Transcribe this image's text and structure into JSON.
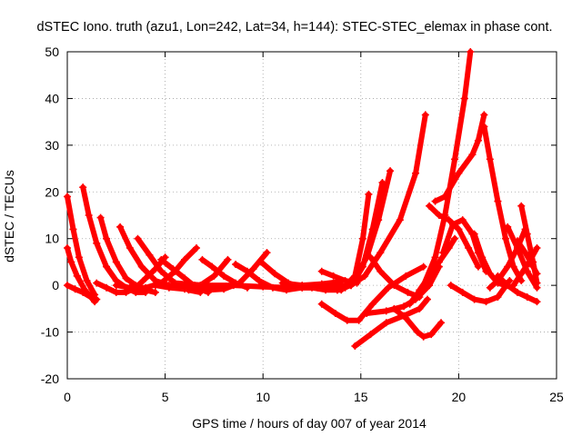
{
  "chart_data": {
    "type": "scatter",
    "title": "dSTEC Iono. truth (azu1, Lon=242, Lat=34, h=144): STEC-STEC_elemax in phase cont.",
    "xlabel": "GPS time / hours of day 007 of year 2014",
    "ylabel": "dSTEC  / TECUs",
    "xlim": [
      0,
      25
    ],
    "ylim": [
      -20,
      50
    ],
    "xticks": [
      0,
      5,
      10,
      15,
      20,
      25
    ],
    "yticks": [
      -20,
      -10,
      0,
      10,
      20,
      30,
      40,
      50
    ],
    "xtick_labels": [
      "0",
      "5",
      "10",
      "15",
      "20",
      "25"
    ],
    "ytick_labels": [
      "-20",
      "-10",
      "0",
      "10",
      "20",
      "30",
      "40",
      "50"
    ],
    "grid": true,
    "legend": "none",
    "marker": "+",
    "series_color": "#ff0000",
    "series": [
      {
        "x": [
          0.0,
          0.3,
          0.6,
          1.0,
          1.4
        ],
        "y": [
          19.0,
          12.0,
          6.0,
          1.0,
          -2.0
        ]
      },
      {
        "x": [
          0.0,
          0.2,
          0.5,
          0.9,
          1.4
        ],
        "y": [
          8.0,
          5.0,
          2.0,
          -1.0,
          -3.5
        ]
      },
      {
        "x": [
          0.0,
          0.4,
          0.8,
          1.2,
          1.5
        ],
        "y": [
          0.0,
          -0.8,
          -1.5,
          -2.5,
          -3.0
        ]
      },
      {
        "x": [
          0.8,
          1.1,
          1.5,
          2.0,
          2.5,
          3.0,
          3.5,
          4.0
        ],
        "y": [
          21.0,
          15.0,
          9.0,
          4.0,
          1.0,
          -0.5,
          -1.5,
          -1.5
        ]
      },
      {
        "x": [
          1.7,
          2.0,
          2.5,
          3.0,
          3.5,
          4.0,
          4.5
        ],
        "y": [
          14.5,
          10.0,
          5.0,
          1.5,
          0.0,
          -1.0,
          -1.5
        ]
      },
      {
        "x": [
          2.7,
          3.2,
          3.8,
          4.5,
          5.2,
          6.0
        ],
        "y": [
          12.5,
          8.0,
          4.0,
          1.0,
          0.0,
          -0.5
        ]
      },
      {
        "x": [
          3.6,
          4.2,
          4.8,
          5.5,
          6.2,
          6.8
        ],
        "y": [
          10.0,
          6.5,
          3.0,
          0.5,
          -1.0,
          -1.5
        ]
      },
      {
        "x": [
          1.5,
          2.0,
          2.5,
          3.0,
          3.5,
          4.0,
          4.5,
          5.0
        ],
        "y": [
          0.5,
          -0.5,
          -1.5,
          -1.5,
          -0.5,
          1.5,
          3.5,
          6.0
        ]
      },
      {
        "x": [
          2.5,
          3.2,
          4.0,
          4.8,
          5.5,
          6.0,
          6.6
        ],
        "y": [
          0.0,
          -0.5,
          -0.5,
          0.5,
          3.0,
          5.5,
          8.0
        ]
      },
      {
        "x": [
          4.5,
          5.2,
          6.0,
          6.8,
          7.5,
          8.2
        ],
        "y": [
          0.0,
          -0.5,
          -0.8,
          0.0,
          2.0,
          5.5
        ]
      },
      {
        "x": [
          6.5,
          7.2,
          8.0,
          8.8,
          9.5,
          10.2
        ],
        "y": [
          0.0,
          -1.0,
          -0.8,
          0.5,
          3.5,
          7.0
        ]
      },
      {
        "x": [
          4.8,
          5.4,
          6.0,
          6.6,
          7.2
        ],
        "y": [
          5.5,
          3.5,
          1.5,
          -0.5,
          -1.5
        ]
      },
      {
        "x": [
          6.9,
          7.4,
          8.0,
          8.6,
          9.2
        ],
        "y": [
          5.5,
          4.0,
          2.0,
          0.5,
          -0.5
        ]
      },
      {
        "x": [
          8.6,
          9.2,
          9.8,
          10.5,
          11.2,
          12.0
        ],
        "y": [
          4.5,
          3.0,
          1.0,
          -0.5,
          -1.0,
          -0.5
        ]
      },
      {
        "x": [
          9.9,
          10.6,
          11.3,
          12.0,
          12.8,
          13.5
        ],
        "y": [
          5.0,
          2.5,
          0.5,
          -0.5,
          -0.5,
          0.0
        ]
      },
      {
        "x": [
          5.5,
          7.0,
          8.5,
          10.0,
          11.5,
          13.0,
          14.5
        ],
        "y": [
          0.5,
          0.0,
          0.0,
          -0.3,
          -0.5,
          -0.5,
          0.0
        ]
      },
      {
        "x": [
          11.0,
          12.0,
          13.0,
          14.0
        ],
        "y": [
          0.5,
          0.0,
          0.3,
          0.8
        ]
      },
      {
        "x": [
          13.0,
          13.6,
          14.2,
          14.8
        ],
        "y": [
          3.0,
          2.0,
          1.0,
          0.5
        ]
      },
      {
        "x": [
          12.5,
          13.2,
          14.0,
          14.7,
          15.1,
          15.4
        ],
        "y": [
          -0.5,
          -1.0,
          -1.0,
          2.0,
          10.0,
          19.5
        ]
      },
      {
        "x": [
          13.0,
          13.8,
          14.5,
          15.3,
          15.9,
          16.5
        ],
        "y": [
          -0.5,
          -1.0,
          0.0,
          6.0,
          14.0,
          24.5
        ]
      },
      {
        "x": [
          13.8,
          14.2,
          14.6,
          15.1,
          15.6,
          16.1
        ],
        "y": [
          -1.0,
          -0.5,
          0.5,
          4.0,
          12.0,
          22.0
        ]
      },
      {
        "x": [
          14.5,
          15.2,
          16.0,
          17.0,
          17.8,
          18.3
        ],
        "y": [
          0.0,
          2.0,
          7.0,
          14.0,
          24.0,
          36.5
        ]
      },
      {
        "x": [
          13.0,
          13.7,
          14.3,
          14.9,
          15.6,
          16.4,
          17.3,
          18.2
        ],
        "y": [
          -4.0,
          -6.0,
          -7.5,
          -7.5,
          -4.0,
          -0.5,
          2.0,
          4.0
        ]
      },
      {
        "x": [
          14.7,
          15.5,
          16.3,
          17.2,
          18.0,
          18.4
        ],
        "y": [
          -13.0,
          -10.5,
          -8.0,
          -6.5,
          -5.0,
          -3.0
        ]
      },
      {
        "x": [
          15.5,
          16.0,
          16.7,
          17.4,
          18.0
        ],
        "y": [
          6.0,
          3.0,
          0.0,
          -1.5,
          -2.5
        ]
      },
      {
        "x": [
          16.7,
          17.3,
          17.9,
          18.2,
          18.6,
          19.1
        ],
        "y": [
          -5.0,
          -7.0,
          -10.0,
          -11.0,
          -10.5,
          -8.0
        ]
      },
      {
        "x": [
          15.3,
          16.3,
          17.2,
          17.8,
          18.5,
          19.0
        ],
        "y": [
          -6.0,
          -5.5,
          -4.5,
          -3.0,
          0.0,
          4.0
        ]
      },
      {
        "x": [
          17.5,
          18.2,
          18.8,
          19.3,
          19.8,
          20.3,
          20.6
        ],
        "y": [
          -4.0,
          0.0,
          6.0,
          15.0,
          27.0,
          40.0,
          50.0
        ]
      },
      {
        "x": [
          18.0,
          18.5,
          19.0,
          19.5,
          19.8
        ],
        "y": [
          -1.0,
          2.0,
          5.0,
          8.0,
          10.0
        ]
      },
      {
        "x": [
          18.8,
          19.3,
          20.0,
          20.7,
          21.0,
          21.3
        ],
        "y": [
          18.0,
          19.0,
          24.0,
          28.0,
          31.0,
          36.5
        ]
      },
      {
        "x": [
          18.5,
          19.0,
          19.5,
          20.0,
          20.5,
          21.0
        ],
        "y": [
          17.0,
          15.0,
          14.0,
          12.0,
          8.0,
          4.0
        ]
      },
      {
        "x": [
          19.2,
          19.7,
          20.2,
          20.7,
          21.0,
          21.4
        ],
        "y": [
          7.0,
          13.0,
          14.0,
          11.0,
          7.0,
          3.0
        ]
      },
      {
        "x": [
          21.3,
          21.6,
          22.0,
          22.4,
          22.8,
          23.2
        ],
        "y": [
          34.0,
          27.0,
          18.0,
          10.0,
          4.0,
          1.0
        ]
      },
      {
        "x": [
          19.6,
          20.2,
          20.8,
          21.4,
          22.0,
          22.6
        ],
        "y": [
          0.0,
          -1.5,
          -3.0,
          -3.5,
          -2.5,
          1.0
        ]
      },
      {
        "x": [
          20.8,
          21.2,
          21.6,
          22.0,
          22.4
        ],
        "y": [
          11.0,
          6.0,
          2.5,
          0.5,
          0.0
        ]
      },
      {
        "x": [
          21.6,
          22.0,
          22.5,
          23.0,
          23.4
        ],
        "y": [
          -0.5,
          1.0,
          4.0,
          8.0,
          12.0
        ]
      },
      {
        "x": [
          22.5,
          23.0,
          23.5,
          24.0
        ],
        "y": [
          12.5,
          8.0,
          3.0,
          -0.5
        ]
      },
      {
        "x": [
          23.2,
          23.5,
          23.8,
          24.0
        ],
        "y": [
          17.0,
          11.0,
          5.0,
          0.5
        ]
      },
      {
        "x": [
          22.0,
          22.5,
          23.0,
          23.5,
          24.0
        ],
        "y": [
          2.0,
          0.0,
          -1.5,
          -2.5,
          -3.5
        ]
      },
      {
        "x": [
          22.8,
          23.2,
          23.6,
          24.0
        ],
        "y": [
          0.0,
          2.5,
          5.0,
          8.0
        ]
      },
      {
        "x": [
          23.0,
          23.4,
          23.8,
          24.0
        ],
        "y": [
          9.5,
          7.0,
          4.0,
          2.5
        ]
      }
    ]
  }
}
